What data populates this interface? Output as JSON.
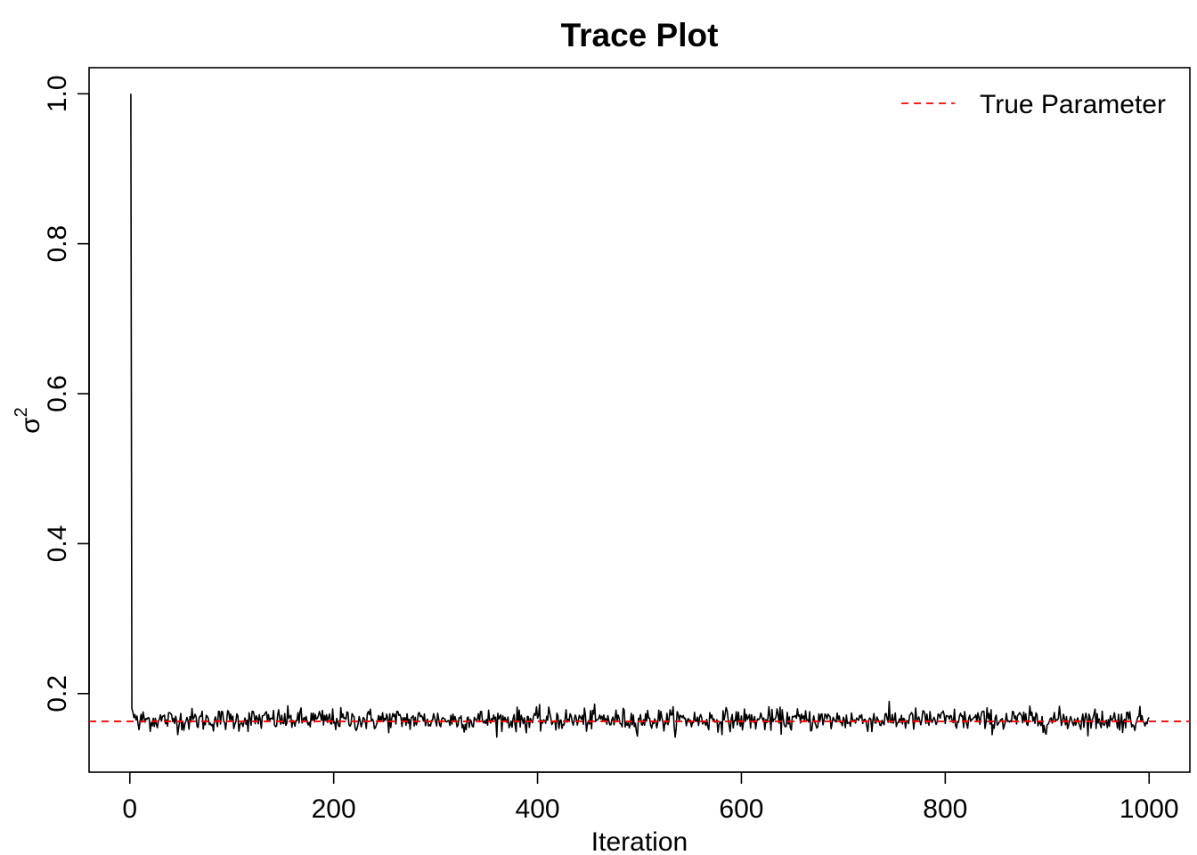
{
  "chart_data": {
    "type": "line",
    "title": "Trace Plot",
    "xlabel": "Iteration",
    "ylabel": "σ",
    "ylabel_superscript": "2",
    "xlim": [
      -40,
      1040
    ],
    "ylim": [
      0.0952,
      1.0348
    ],
    "x_ticks": [
      0,
      200,
      400,
      600,
      800,
      1000
    ],
    "y_ticks": [
      0.2,
      0.4,
      0.6,
      0.8,
      1.0
    ],
    "x_tick_labels": [
      "0",
      "200",
      "400",
      "600",
      "800",
      "1000"
    ],
    "y_tick_labels": [
      "0.2",
      "0.4",
      "0.6",
      "0.8",
      "1.0"
    ],
    "legend": {
      "position": "top-right",
      "entries": [
        {
          "label": "True Parameter",
          "color": "#ff0000",
          "style": "dashed"
        }
      ]
    },
    "true_parameter": 0.163,
    "series": [
      {
        "color": "#000000",
        "iterations": [
          1,
          1000
        ],
        "values_first": [
          1.0,
          0.18,
          0.175,
          0.168,
          0.172,
          0.165,
          0.17,
          0.16,
          0.152
        ],
        "stationary_summary": {
          "center": 0.165,
          "min": 0.142,
          "max": 0.197
        }
      }
    ]
  }
}
